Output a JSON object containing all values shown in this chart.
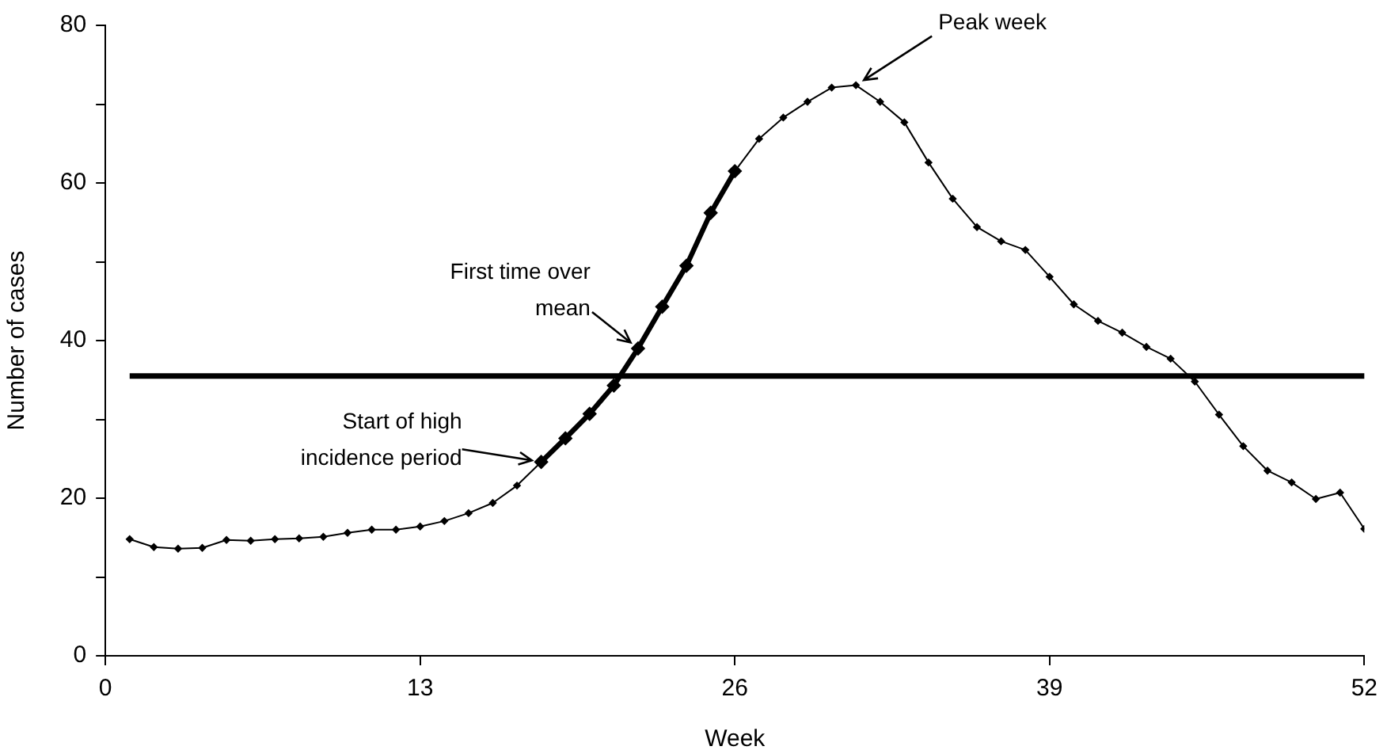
{
  "chart_data": {
    "type": "line",
    "xlabel": "Week",
    "ylabel": "Number of cases",
    "x": [
      1,
      2,
      3,
      4,
      5,
      6,
      7,
      8,
      9,
      10,
      11,
      12,
      13,
      14,
      15,
      16,
      17,
      18,
      19,
      20,
      21,
      22,
      23,
      24,
      25,
      26,
      27,
      28,
      29,
      30,
      31,
      32,
      33,
      34,
      35,
      36,
      37,
      38,
      39,
      40,
      41,
      42,
      43,
      44,
      45,
      46,
      47,
      48,
      49,
      50,
      51,
      52
    ],
    "series": [
      {
        "color": "#000000",
        "values": [
          14.8,
          13.8,
          13.6,
          13.7,
          14.7,
          14.6,
          14.8,
          14.9,
          15.1,
          15.6,
          16,
          16,
          16.4,
          17.1,
          18.1,
          19.4,
          21.6,
          24.6,
          27.6,
          30.7,
          34.3,
          39,
          44.3,
          49.5,
          56.2,
          61.5,
          65.6,
          68.3,
          70.3,
          72.1,
          72.4,
          70.3,
          67.7,
          62.6,
          58,
          54.4,
          52.6,
          51.5,
          48.1,
          44.6,
          42.5,
          41,
          39.2,
          37.7,
          34.8,
          30.6,
          26.6,
          23.5,
          22,
          19.9,
          20.7,
          16.1
        ]
      },
      {
        "color": "#000000",
        "x": [
          18,
          19,
          20,
          21,
          22,
          23,
          24,
          25,
          26
        ],
        "values": [
          24.6,
          27.6,
          30.7,
          34.3,
          39,
          44.3,
          49.5,
          56.2,
          61.5
        ]
      }
    ],
    "ref_lines": [
      {
        "axis": "y",
        "value": 35.5,
        "color": "#000000"
      }
    ],
    "annotations": [
      {
        "text": "Start of high incidence period",
        "x": 18,
        "y": 24.6
      },
      {
        "text": "First time over mean",
        "x": 22,
        "y": 39
      },
      {
        "text": "Peak week",
        "x": 31,
        "y": 72.4
      }
    ],
    "xlim": [
      0,
      52
    ],
    "xticks": [
      0,
      13,
      26,
      39,
      52
    ],
    "ylim": [
      0,
      80
    ],
    "yticks": [
      0,
      {
        "value": 10,
        "label": null
      },
      20,
      {
        "value": 30,
        "label": null
      },
      40,
      {
        "value": 50,
        "label": null
      },
      60,
      {
        "value": 70,
        "label": null
      },
      80
    ],
    "grid": false,
    "legend": false,
    "marker": "diamond",
    "line_style": "solid"
  }
}
